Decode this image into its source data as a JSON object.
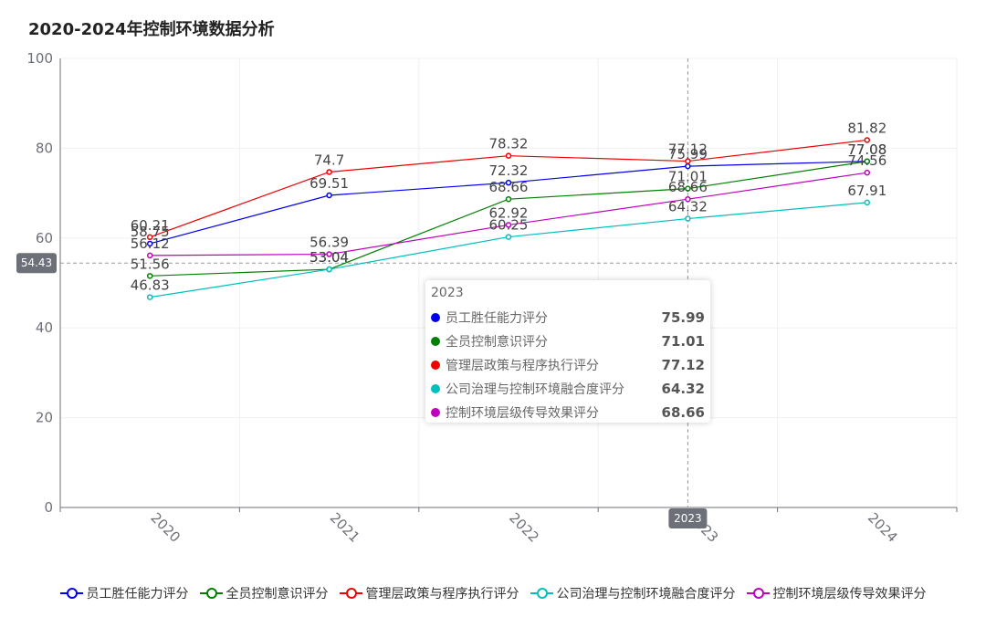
{
  "chart_data": {
    "type": "line",
    "title": "2020-2024年控制环境数据分析",
    "categories": [
      "2020",
      "2021",
      "2022",
      "2023",
      "2024"
    ],
    "ylim": [
      0,
      100
    ],
    "yticks": [
      0,
      20,
      40,
      60,
      80,
      100
    ],
    "grid": true,
    "legend_position": "bottom",
    "series": [
      {
        "name": "员工胜任能力评分",
        "color": "#0000ee",
        "values": [
          58.75,
          69.51,
          72.32,
          75.99,
          77.08
        ]
      },
      {
        "name": "全员控制意识评分",
        "color": "#008000",
        "values": [
          51.56,
          53.04,
          68.66,
          71.01,
          77.08
        ]
      },
      {
        "name": "管理层政策与程序执行评分",
        "color": "#ee0000",
        "values": [
          60.21,
          74.7,
          78.32,
          77.12,
          81.82
        ]
      },
      {
        "name": "公司治理与控制环境融合度评分",
        "color": "#00bfbf",
        "values": [
          46.83,
          53.04,
          60.25,
          64.32,
          67.91
        ]
      },
      {
        "name": "控制环境层级传导效果评分",
        "color": "#bf00bf",
        "values": [
          56.12,
          56.39,
          62.92,
          68.66,
          74.56
        ]
      }
    ],
    "crosshair": {
      "y_label": "54.43",
      "x_label": "2023"
    }
  },
  "tooltip": {
    "title": "2023",
    "rows": [
      {
        "name": "员工胜任能力评分",
        "value": "75.99",
        "color": "#0000ee"
      },
      {
        "name": "全员控制意识评分",
        "value": "71.01",
        "color": "#008000"
      },
      {
        "name": "管理层政策与程序执行评分",
        "value": "77.12",
        "color": "#ee0000"
      },
      {
        "name": "公司治理与控制环境融合度评分",
        "value": "64.32",
        "color": "#00bfbf"
      },
      {
        "name": "控制环境层级传导效果评分",
        "value": "68.66",
        "color": "#bf00bf"
      }
    ]
  }
}
